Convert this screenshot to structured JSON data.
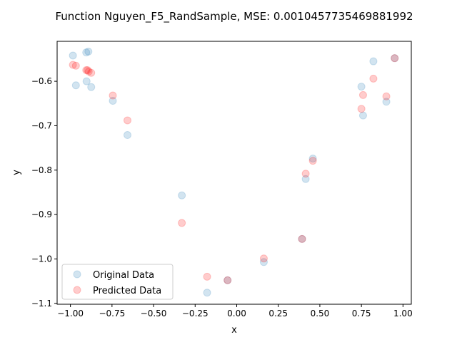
{
  "chart_data": {
    "type": "scatter",
    "title": "Function Nguyen_F5_RandSample, MSE: 0.0010457735469881992",
    "xlabel": "x",
    "ylabel": "y",
    "xlim": [
      -1.08,
      1.05
    ],
    "ylim": [
      -1.102,
      -0.51
    ],
    "x_ticks": [
      -1.0,
      -0.75,
      -0.5,
      -0.25,
      0.0,
      0.25,
      0.5,
      0.75,
      1.0
    ],
    "x_tick_labels": [
      "−1.00",
      "−0.75",
      "−0.50",
      "−0.25",
      "0.00",
      "0.25",
      "0.50",
      "0.75",
      "1.00"
    ],
    "y_ticks": [
      -1.1,
      -1.0,
      -0.9,
      -0.8,
      -0.7,
      -0.6
    ],
    "y_tick_labels": [
      "−1.1",
      "−1.0",
      "−0.9",
      "−0.8",
      "−0.7",
      "−0.6"
    ],
    "grid": false,
    "legend_position": "lower-left",
    "series": [
      {
        "name": "Original Data",
        "color": "#1f77b4",
        "alpha": 0.2,
        "points": [
          [
            -0.985,
            -0.542
          ],
          [
            -0.967,
            -0.609
          ],
          [
            -0.905,
            -0.535
          ],
          [
            -0.892,
            -0.533
          ],
          [
            -0.903,
            -0.6
          ],
          [
            -0.875,
            -0.613
          ],
          [
            -0.745,
            -0.644
          ],
          [
            -0.657,
            -0.721
          ],
          [
            -0.33,
            -0.857
          ],
          [
            -0.178,
            -1.076
          ],
          [
            -0.055,
            -1.048
          ],
          [
            0.163,
            -1.007
          ],
          [
            0.393,
            -0.955
          ],
          [
            0.415,
            -0.82
          ],
          [
            0.458,
            -0.774
          ],
          [
            0.75,
            -0.612
          ],
          [
            0.76,
            -0.677
          ],
          [
            0.822,
            -0.555
          ],
          [
            0.9,
            -0.646
          ],
          [
            0.95,
            -0.548
          ]
        ]
      },
      {
        "name": "Predicted Data",
        "color": "#ff0000",
        "alpha": 0.2,
        "points": [
          [
            -0.985,
            -0.563
          ],
          [
            -0.967,
            -0.565
          ],
          [
            -0.905,
            -0.575
          ],
          [
            -0.897,
            -0.575
          ],
          [
            -0.89,
            -0.578
          ],
          [
            -0.875,
            -0.581
          ],
          [
            -0.745,
            -0.632
          ],
          [
            -0.657,
            -0.688
          ],
          [
            -0.33,
            -0.919
          ],
          [
            -0.178,
            -1.04
          ],
          [
            -0.055,
            -1.048
          ],
          [
            0.163,
            -0.999
          ],
          [
            0.393,
            -0.955
          ],
          [
            0.415,
            -0.808
          ],
          [
            0.458,
            -0.779
          ],
          [
            0.75,
            -0.662
          ],
          [
            0.76,
            -0.631
          ],
          [
            0.822,
            -0.594
          ],
          [
            0.9,
            -0.634
          ],
          [
            0.95,
            -0.548
          ]
        ]
      }
    ]
  }
}
